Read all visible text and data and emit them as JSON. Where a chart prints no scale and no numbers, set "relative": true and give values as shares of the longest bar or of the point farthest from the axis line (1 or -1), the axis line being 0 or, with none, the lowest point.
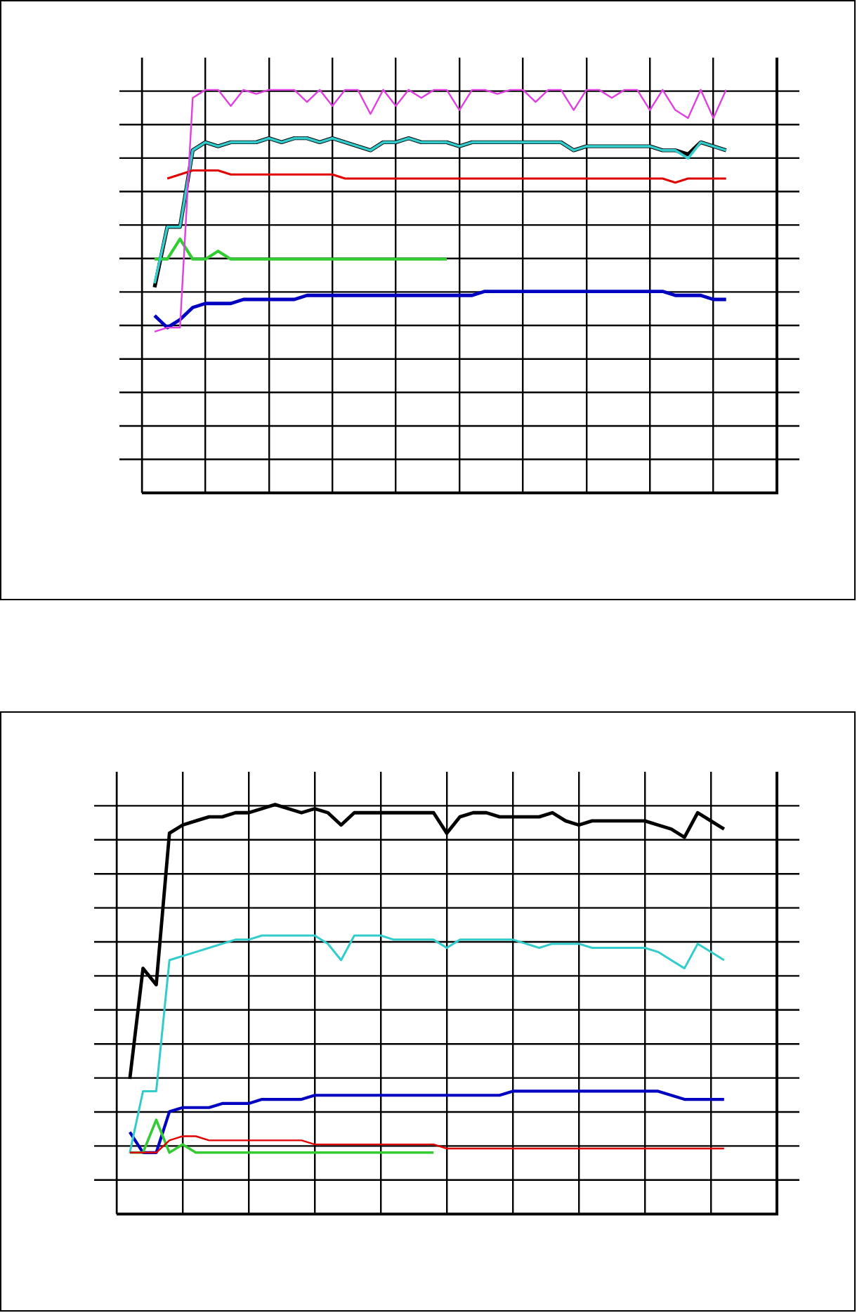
{
  "chart_data": [
    {
      "type": "line",
      "relative": true,
      "grid": true,
      "marker": "none",
      "line_style": "solid",
      "categories": [
        null,
        null,
        null,
        null,
        null,
        null,
        null,
        null,
        null,
        null,
        null,
        null,
        null,
        null,
        null,
        null,
        null,
        null,
        null,
        null,
        null,
        null,
        null,
        null,
        null,
        null,
        null,
        null,
        null,
        null,
        null,
        null,
        null,
        null,
        null,
        null,
        null,
        null,
        null,
        null,
        null,
        null,
        null,
        null,
        null,
        null,
        null,
        null,
        null,
        null,
        null
      ],
      "series": [
        {
          "color": "#000000",
          "values": [
            null,
            0.51,
            0.66,
            0.66,
            0.85,
            0.87,
            0.86,
            0.87,
            0.87,
            0.87,
            0.88,
            0.87,
            0.88,
            0.88,
            0.87,
            0.88,
            0.87,
            0.86,
            0.85,
            0.87,
            0.87,
            0.88,
            0.87,
            0.87,
            0.87,
            0.86,
            0.87,
            0.87,
            0.87,
            0.87,
            0.87,
            0.87,
            0.87,
            0.87,
            0.85,
            0.86,
            0.86,
            0.86,
            0.86,
            0.86,
            0.86,
            0.85,
            0.85,
            0.84,
            0.87,
            0.86,
            0.85,
            null,
            null,
            null,
            null
          ]
        },
        {
          "color": "#0000c0",
          "values": [
            null,
            0.44,
            0.41,
            0.43,
            0.46,
            0.47,
            0.47,
            0.47,
            0.48,
            0.48,
            0.48,
            0.48,
            0.48,
            0.49,
            0.49,
            0.49,
            0.49,
            0.49,
            0.49,
            0.49,
            0.49,
            0.49,
            0.49,
            0.49,
            0.49,
            0.49,
            0.49,
            0.5,
            0.5,
            0.5,
            0.5,
            0.5,
            0.5,
            0.5,
            0.5,
            0.5,
            0.5,
            0.5,
            0.5,
            0.5,
            0.5,
            0.5,
            0.49,
            0.49,
            0.49,
            0.48,
            0.48,
            null,
            null,
            null,
            null
          ]
        },
        {
          "color": "#33cc33",
          "values": [
            null,
            0.58,
            0.58,
            0.63,
            0.58,
            0.58,
            0.6,
            0.58,
            0.58,
            0.58,
            0.58,
            0.58,
            0.58,
            0.58,
            0.58,
            0.58,
            0.58,
            0.58,
            0.58,
            0.58,
            0.58,
            0.58,
            0.58,
            0.58,
            0.58,
            null,
            null,
            null,
            null,
            null,
            null,
            null,
            null,
            null,
            null,
            null,
            null,
            null,
            null,
            null,
            null,
            null,
            null,
            null,
            null,
            null,
            null,
            null,
            null,
            null,
            null
          ]
        },
        {
          "color": "#33cccc",
          "values": [
            null,
            0.52,
            0.66,
            0.66,
            0.85,
            0.87,
            0.86,
            0.87,
            0.87,
            0.87,
            0.88,
            0.87,
            0.88,
            0.88,
            0.87,
            0.88,
            0.87,
            0.86,
            0.85,
            0.87,
            0.87,
            0.88,
            0.87,
            0.87,
            0.87,
            0.86,
            0.87,
            0.87,
            0.87,
            0.87,
            0.87,
            0.87,
            0.87,
            0.87,
            0.85,
            0.86,
            0.86,
            0.86,
            0.86,
            0.86,
            0.86,
            0.85,
            0.85,
            0.83,
            0.87,
            0.86,
            0.85,
            null,
            null,
            null,
            null
          ]
        },
        {
          "color": "#e00000",
          "values": [
            null,
            null,
            0.78,
            0.79,
            0.8,
            0.8,
            0.8,
            0.79,
            0.79,
            0.79,
            0.79,
            0.79,
            0.79,
            0.79,
            0.79,
            0.79,
            0.78,
            0.78,
            0.78,
            0.78,
            0.78,
            0.78,
            0.78,
            0.78,
            0.78,
            0.78,
            0.78,
            0.78,
            0.78,
            0.78,
            0.78,
            0.78,
            0.78,
            0.78,
            0.78,
            0.78,
            0.78,
            0.78,
            0.78,
            0.78,
            0.78,
            0.78,
            0.77,
            0.78,
            0.78,
            0.78,
            0.78,
            null,
            null,
            null,
            null
          ]
        },
        {
          "color": "#e040e0",
          "values": [
            null,
            0.4,
            0.41,
            0.41,
            0.98,
            1,
            1,
            0.96,
            1,
            0.99,
            1,
            1,
            1,
            0.97,
            1,
            0.96,
            1,
            1,
            0.94,
            1,
            0.96,
            1,
            0.98,
            1,
            1,
            0.95,
            1,
            1,
            0.99,
            1,
            1,
            0.97,
            1,
            1,
            0.95,
            1,
            1,
            0.98,
            1,
            1,
            0.95,
            1,
            0.95,
            0.93,
            1,
            0.93,
            1,
            null,
            null,
            null,
            null
          ]
        }
      ]
    },
    {
      "type": "line",
      "relative": true,
      "grid": true,
      "marker": "none",
      "line_style": "solid",
      "categories": [
        null,
        null,
        null,
        null,
        null,
        null,
        null,
        null,
        null,
        null,
        null,
        null,
        null,
        null,
        null,
        null,
        null,
        null,
        null,
        null,
        null,
        null,
        null,
        null,
        null,
        null,
        null,
        null,
        null,
        null,
        null,
        null,
        null,
        null,
        null,
        null,
        null,
        null,
        null,
        null,
        null,
        null,
        null,
        null,
        null,
        null,
        null,
        null,
        null,
        null,
        null
      ],
      "series": [
        {
          "color": "#000000",
          "values": [
            null,
            0.33,
            0.6,
            0.56,
            0.93,
            0.95,
            0.96,
            0.97,
            0.97,
            0.98,
            0.98,
            0.99,
            1,
            0.99,
            0.98,
            0.99,
            0.98,
            0.95,
            0.98,
            0.98,
            0.98,
            0.98,
            0.98,
            0.98,
            0.98,
            0.93,
            0.97,
            0.98,
            0.98,
            0.97,
            0.97,
            0.97,
            0.97,
            0.98,
            0.96,
            0.95,
            0.96,
            0.96,
            0.96,
            0.96,
            0.96,
            0.95,
            0.94,
            0.92,
            0.98,
            0.96,
            0.94,
            null,
            null,
            null,
            null
          ]
        },
        {
          "color": "#0000c0",
          "values": [
            null,
            0.2,
            0.15,
            0.15,
            0.25,
            0.26,
            0.26,
            0.26,
            0.27,
            0.27,
            0.27,
            0.28,
            0.28,
            0.28,
            0.28,
            0.29,
            0.29,
            0.29,
            0.29,
            0.29,
            0.29,
            0.29,
            0.29,
            0.29,
            0.29,
            0.29,
            0.29,
            0.29,
            0.29,
            0.29,
            0.3,
            0.3,
            0.3,
            0.3,
            0.3,
            0.3,
            0.3,
            0.3,
            0.3,
            0.3,
            0.3,
            0.3,
            0.29,
            0.28,
            0.28,
            0.28,
            0.28,
            null,
            null,
            null,
            null
          ]
        },
        {
          "color": "#33cc33",
          "values": [
            null,
            0.15,
            0.15,
            0.23,
            0.15,
            0.17,
            0.15,
            0.15,
            0.15,
            0.15,
            0.15,
            0.15,
            0.15,
            0.15,
            0.15,
            0.15,
            0.15,
            0.15,
            0.15,
            0.15,
            0.15,
            0.15,
            0.15,
            0.15,
            0.15,
            null,
            null,
            null,
            null,
            null,
            null,
            null,
            null,
            null,
            null,
            null,
            null,
            null,
            null,
            null,
            null,
            null,
            null,
            null,
            null,
            null,
            null,
            null,
            null,
            null,
            null
          ]
        },
        {
          "color": "#33cccc",
          "values": [
            null,
            0.15,
            0.3,
            0.3,
            0.62,
            0.63,
            0.64,
            0.65,
            0.66,
            0.67,
            0.67,
            0.68,
            0.68,
            0.68,
            0.68,
            0.68,
            0.66,
            0.62,
            0.68,
            0.68,
            0.68,
            0.67,
            0.67,
            0.67,
            0.67,
            0.65,
            0.67,
            0.67,
            0.67,
            0.67,
            0.67,
            0.66,
            0.65,
            0.66,
            0.66,
            0.66,
            0.65,
            0.65,
            0.65,
            0.65,
            0.65,
            0.64,
            0.62,
            0.6,
            0.66,
            0.64,
            0.62,
            null,
            null,
            null,
            null
          ]
        },
        {
          "color": "#e00000",
          "values": [
            null,
            0.15,
            0.15,
            0.15,
            0.18,
            0.19,
            0.19,
            0.18,
            0.18,
            0.18,
            0.18,
            0.18,
            0.18,
            0.18,
            0.18,
            0.17,
            0.17,
            0.17,
            0.17,
            0.17,
            0.17,
            0.17,
            0.17,
            0.17,
            0.17,
            0.16,
            0.16,
            0.16,
            0.16,
            0.16,
            0.16,
            0.16,
            0.16,
            0.16,
            0.16,
            0.16,
            0.16,
            0.16,
            0.16,
            0.16,
            0.16,
            0.16,
            0.16,
            0.16,
            0.16,
            0.16,
            0.16,
            null,
            null,
            null,
            null
          ]
        }
      ]
    }
  ]
}
